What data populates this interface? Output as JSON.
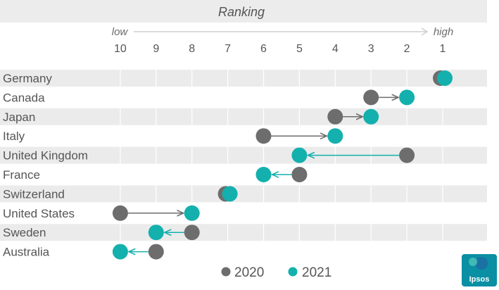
{
  "chart_data": {
    "type": "dumbbell",
    "title": "Ranking",
    "direction_low": "low",
    "direction_high": "high",
    "x_ticks": [
      "10",
      "9",
      "8",
      "7",
      "6",
      "5",
      "4",
      "3",
      "2",
      "1"
    ],
    "xlim": [
      10,
      1
    ],
    "categories": [
      "Germany",
      "Canada",
      "Japan",
      "Italy",
      "United Kingdom",
      "France",
      "Switzerland",
      "United States",
      "Sweden",
      "Australia"
    ],
    "series": [
      {
        "name": "2020",
        "color": "#6d6d6d",
        "values": [
          1,
          3,
          4,
          6,
          2,
          5,
          7,
          10,
          8,
          9
        ]
      },
      {
        "name": "2021",
        "color": "#14b0ad",
        "values": [
          1,
          2,
          3,
          4,
          5,
          6,
          7,
          8,
          9,
          10
        ]
      }
    ],
    "legend_position": "bottom",
    "grid": true
  },
  "logo": {
    "text": "Ipsos"
  }
}
